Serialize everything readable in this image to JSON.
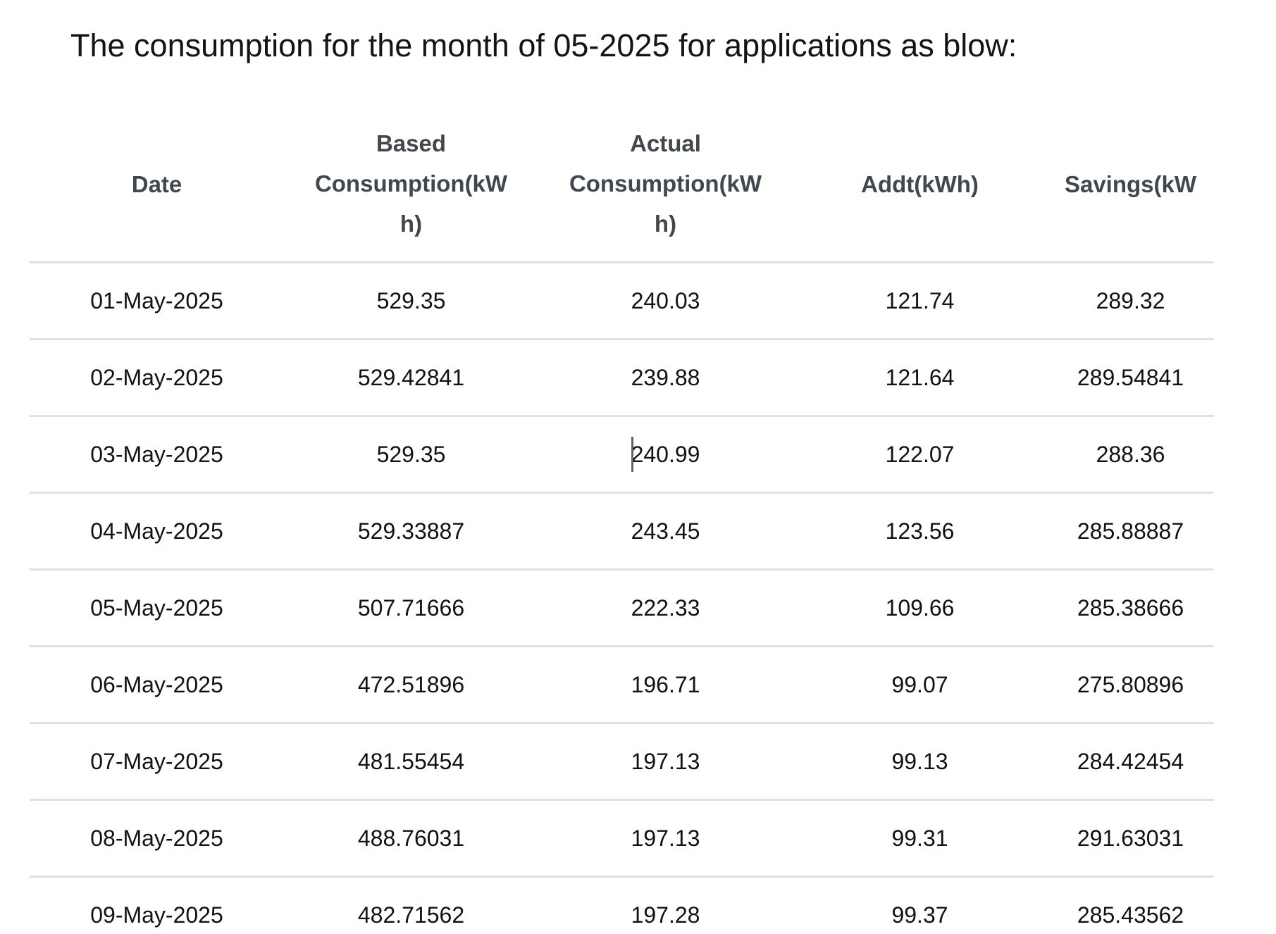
{
  "page": {
    "title": "The consumption for the month of 05-2025 for applications as blow:"
  },
  "table": {
    "columns": [
      {
        "key": "date",
        "label": "Date"
      },
      {
        "key": "based",
        "label": "Based Consumption(kWh)"
      },
      {
        "key": "actual",
        "label": "Actual Consumption(kWh)"
      },
      {
        "key": "addt",
        "label": "Addt(kWh)"
      },
      {
        "key": "savings",
        "label": "Savings(kW"
      }
    ],
    "rows": [
      [
        "01-May-2025",
        "529.35",
        "240.03",
        "121.74",
        "289.32"
      ],
      [
        "02-May-2025",
        "529.42841",
        "239.88",
        "121.64",
        "289.54841"
      ],
      [
        "03-May-2025",
        "529.35",
        "240.99",
        "122.07",
        "288.36"
      ],
      [
        "04-May-2025",
        "529.33887",
        "243.45",
        "123.56",
        "285.88887"
      ],
      [
        "05-May-2025",
        "507.71666",
        "222.33",
        "109.66",
        "285.38666"
      ],
      [
        "06-May-2025",
        "472.51896",
        "196.71",
        "99.07",
        "275.80896"
      ],
      [
        "07-May-2025",
        "481.55454",
        "197.13",
        "99.13",
        "284.42454"
      ],
      [
        "08-May-2025",
        "488.76031",
        "197.13",
        "99.31",
        "291.63031"
      ],
      [
        "09-May-2025",
        "482.71562",
        "197.28",
        "99.37",
        "285.43562"
      ]
    ],
    "edit_caret": {
      "row_index": 2,
      "column_index": 2,
      "cell_value": "240.99",
      "caret_after_text": "2"
    }
  },
  "colors": {
    "body_text": "#101214",
    "header_text": "#40474e",
    "row_border": "#dee2e6",
    "caret": "#5f6368"
  }
}
